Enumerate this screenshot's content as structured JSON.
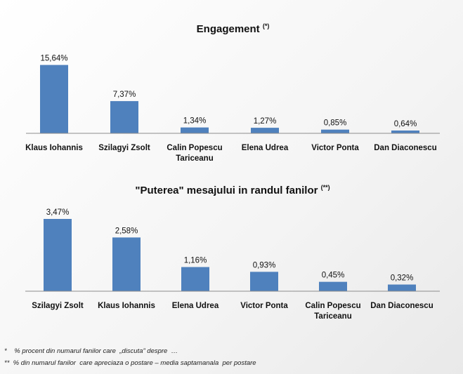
{
  "chart_data": [
    {
      "type": "bar",
      "title": "Engagement",
      "title_marker": "(*)",
      "categories": [
        "Klaus Iohannis",
        "Szilagyi Zsolt",
        "Calin Popescu\nTariceanu",
        "Elena Udrea",
        "Victor Ponta",
        "Dan Diaconescu"
      ],
      "values": [
        15.64,
        7.37,
        1.34,
        1.27,
        0.85,
        0.64
      ],
      "labels": [
        "15,64%",
        "7,37%",
        "1,34%",
        "1,27%",
        "0,85%",
        "0,64%"
      ],
      "ylim": [
        0,
        17.5
      ],
      "bar_color": "#4f81bd",
      "grid": false,
      "legend": "none"
    },
    {
      "type": "bar",
      "title": "\"Puterea\" mesajului in randul fanilor",
      "title_marker": "(**)",
      "categories": [
        "Szilagyi Zsolt",
        "Klaus Iohannis",
        "Elena Udrea",
        "Victor Ponta",
        "Calin Popescu\nTariceanu",
        "Dan Diaconescu"
      ],
      "values": [
        3.47,
        2.58,
        1.16,
        0.93,
        0.45,
        0.32
      ],
      "labels": [
        "3,47%",
        "2,58%",
        "1,16%",
        "0,93%",
        "0,45%",
        "0,32%"
      ],
      "ylim": [
        0,
        3.47
      ],
      "bar_color": "#4f81bd",
      "grid": false,
      "legend": "none"
    }
  ],
  "footnotes": [
    "*    % procent din numarul fanilor care  „discuta” despre  …",
    "**  % din numarul fanilor  care apreciaza o postare – media saptamanala  per postare"
  ]
}
